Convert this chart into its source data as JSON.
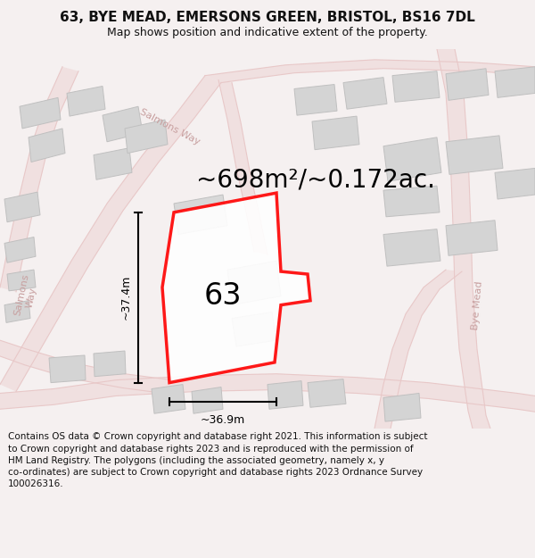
{
  "title_line1": "63, BYE MEAD, EMERSONS GREEN, BRISTOL, BS16 7DL",
  "title_line2": "Map shows position and indicative extent of the property.",
  "area_text": "~698m²/~0.172ac.",
  "label_63": "63",
  "dim_height": "~37.4m",
  "dim_width": "~36.9m",
  "footer": "Contains OS data © Crown copyright and database right 2021. This information is subject to Crown copyright and database rights 2023 and is reproduced with the permission of HM Land Registry. The polygons (including the associated geometry, namely x, y co-ordinates) are subject to Crown copyright and database rights 2023 Ordnance Survey 100026316.",
  "bg_color": "#f5f0f0",
  "map_bg": "#f5f0f0",
  "road_color": "#e8c8c8",
  "road_fill": "#f0e0e0",
  "building_fill": "#d4d4d4",
  "building_edge": "#c0c0c0",
  "plot_border": "#ff0000",
  "text_color": "#111111",
  "footer_bg": "#ffffff",
  "road_label_color": "#c8a0a0",
  "title_fontsize": 11,
  "subtitle_fontsize": 9,
  "area_fontsize": 20,
  "label_fontsize": 24,
  "dim_fontsize": 9,
  "road_label_fontsize": 8
}
